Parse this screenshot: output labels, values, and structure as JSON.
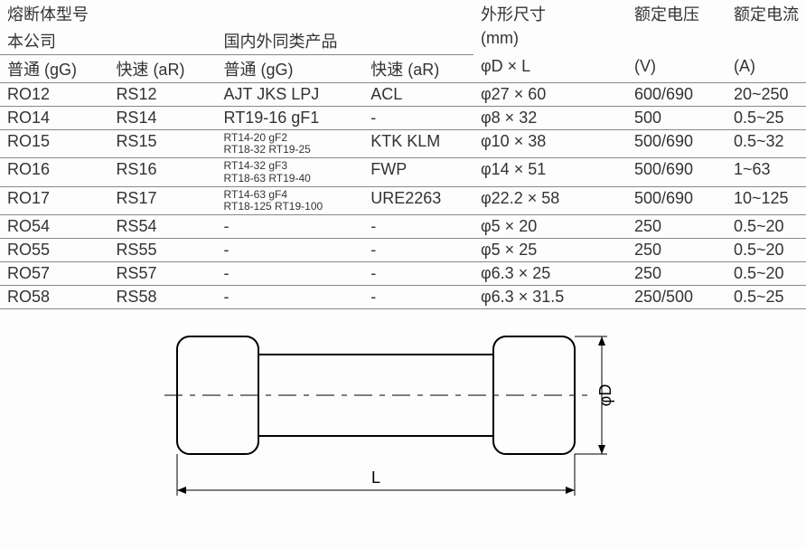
{
  "header": {
    "fuse_model": "熔断体型号",
    "our_company": "本公司",
    "similar_products": "国内外同类产品",
    "dimensions": "外形尺寸",
    "dim_unit": "(mm)",
    "d_by_l": "D × L",
    "rated_voltage": "额定电压",
    "v_unit": "(V)",
    "rated_current": "额定电流",
    "a_unit": "(A)",
    "gg": "普通 (gG)",
    "ar": "快速 (aR)"
  },
  "rows": [
    {
      "gg": "RO12",
      "ar": "RS12",
      "pgg_l1": "AJT JKS LPJ",
      "pgg_l2": "",
      "par": "ACL",
      "dim": "27 × 60",
      "v": "600/690",
      "a": "20~250"
    },
    {
      "gg": "RO14",
      "ar": "RS14",
      "pgg_l1": "RT19-16 gF1",
      "pgg_l2": "",
      "par": "-",
      "dim": "8 × 32",
      "v": "500",
      "a": "0.5~25"
    },
    {
      "gg": "RO15",
      "ar": "RS15",
      "pgg_l1": "RT14-20 gF2",
      "pgg_l2": "RT18-32 RT19-25",
      "par": "KTK KLM",
      "dim": "10 × 38",
      "v": "500/690",
      "a": "0.5~32"
    },
    {
      "gg": "RO16",
      "ar": "RS16",
      "pgg_l1": "RT14-32 gF3",
      "pgg_l2": "RT18-63 RT19-40",
      "par": "FWP",
      "dim": "14 × 51",
      "v": "500/690",
      "a": "1~63"
    },
    {
      "gg": "RO17",
      "ar": "RS17",
      "pgg_l1": "RT14-63 gF4",
      "pgg_l2": "RT18-125 RT19-100",
      "par": "URE2263",
      "dim": "22.2 × 58",
      "v": "500/690",
      "a": "10~125"
    },
    {
      "gg": "RO54",
      "ar": "RS54",
      "pgg_l1": "-",
      "pgg_l2": "",
      "par": "-",
      "dim": "5 × 20",
      "v": "250",
      "a": "0.5~20"
    },
    {
      "gg": "RO55",
      "ar": "RS55",
      "pgg_l1": "-",
      "pgg_l2": "",
      "par": "-",
      "dim": "5 × 25",
      "v": "250",
      "a": "0.5~20"
    },
    {
      "gg": "RO57",
      "ar": "RS57",
      "pgg_l1": "-",
      "pgg_l2": "",
      "par": "-",
      "dim": "6.3 × 25",
      "v": "250",
      "a": "0.5~20"
    },
    {
      "gg": "RO58",
      "ar": "RS58",
      "pgg_l1": "-",
      "pgg_l2": "",
      "par": "-",
      "dim": "6.3 × 31.5",
      "v": "250/500",
      "a": "0.5~25"
    }
  ],
  "diagram": {
    "label_L": "L",
    "label_D": "φD",
    "colors": {
      "stroke": "#000000",
      "bg": "#fdfdfd",
      "dash": "#000000"
    },
    "stroke_width": 2
  }
}
